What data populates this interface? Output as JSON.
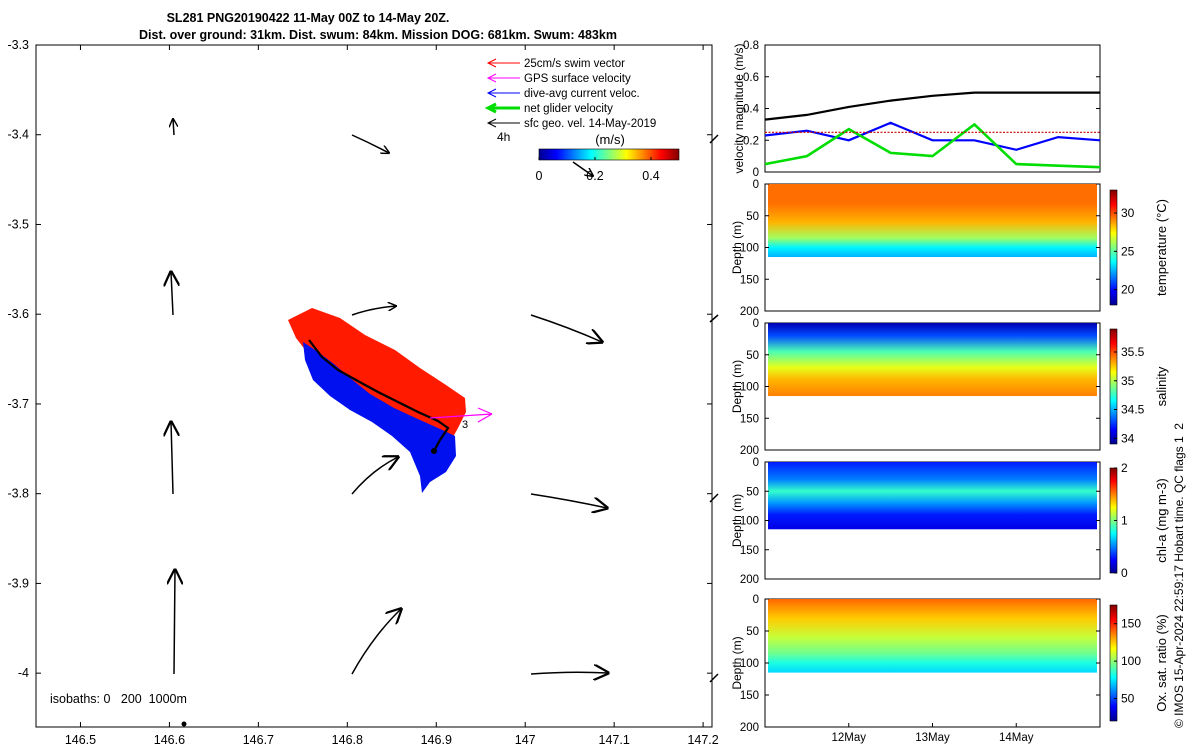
{
  "header": {
    "title_line1": "SL281 PNG20190422 11-May 00Z to 14-May 20Z.",
    "title_line2": "Dist. over ground: 31km. Dist. swum: 84km. Mission DOG: 681km. Swum: 483km"
  },
  "map": {
    "legend": [
      {
        "label": "25cm/s swim vector",
        "color": "#ff0000",
        "width": 1
      },
      {
        "label": "GPS surface velocity",
        "color": "#ff00ff",
        "width": 1
      },
      {
        "label": "dive-avg current veloc.",
        "color": "#0000ff",
        "width": 1
      },
      {
        "label": "net glider velocity",
        "color": "#00dd00",
        "width": 3
      },
      {
        "label": "sfc geo. vel. 14-May-2019",
        "color": "#000000",
        "width": 1
      }
    ],
    "colorbar_tag": "4h",
    "colorbar_unit": "(m/s)",
    "colorbar_ticks": [
      "0",
      "0.2",
      "0.4"
    ],
    "colorbar_range": [
      0,
      0.5
    ],
    "isobaths_label": "isobaths: 0   200  1000m",
    "track_label": "3",
    "x_ticks": [
      "146.5",
      "146.6",
      "146.7",
      "146.8",
      "146.9",
      "147",
      "147.1",
      "147.2"
    ],
    "y_ticks": [
      "-3.3",
      "-3.4",
      "-3.5",
      "-3.6",
      "-3.7",
      "-3.8",
      "-3.9",
      "-4"
    ],
    "xlim": [
      146.45,
      147.21
    ],
    "ylim": [
      -4.06,
      -3.3
    ]
  },
  "chart_data": [
    {
      "type": "line",
      "ylabel": "velocity magnitude (m/s)",
      "ylim": [
        0,
        0.8
      ],
      "yticks": [
        "0",
        "0.2",
        "0.4",
        "0.6",
        "0.8"
      ],
      "x": [
        "11-May 00Z",
        "11-May 12Z",
        "12-May 00Z",
        "12-May 12Z",
        "13-May 00Z",
        "13-May 12Z",
        "14-May 00Z",
        "14-May 12Z",
        "14-May 20Z"
      ],
      "series": [
        {
          "color": "#000000",
          "values": [
            0.33,
            0.36,
            0.41,
            0.45,
            0.48,
            0.5,
            0.5,
            0.5,
            0.5
          ]
        },
        {
          "color": "#0000ff",
          "values": [
            0.23,
            0.26,
            0.2,
            0.31,
            0.2,
            0.2,
            0.14,
            0.22,
            0.2
          ]
        },
        {
          "color": "#00dd00",
          "values": [
            0.05,
            0.1,
            0.27,
            0.12,
            0.1,
            0.3,
            0.05,
            0.04,
            0.03
          ]
        },
        {
          "color": "#cc0000",
          "values": [
            0.25,
            0.25,
            0.25,
            0.25,
            0.25,
            0.25,
            0.25,
            0.25,
            0.25
          ]
        }
      ]
    },
    {
      "type": "heatmap",
      "ylabel": "Depth (m)",
      "colorbar_label": "temperature (°C)",
      "ylim": [
        200,
        0
      ],
      "yticks": [
        "0",
        "50",
        "100",
        "150",
        "200"
      ],
      "cticks": [
        "20",
        "25",
        "30"
      ],
      "crange": [
        18,
        33
      ],
      "depth_m": [
        0,
        30,
        60,
        85,
        100,
        115
      ],
      "values": [
        29.5,
        29.5,
        28.5,
        26,
        23.5,
        22.5
      ]
    },
    {
      "type": "heatmap",
      "ylabel": "Depth (m)",
      "colorbar_label": "salinity",
      "ylim": [
        200,
        0
      ],
      "yticks": [
        "0",
        "50",
        "100",
        "150",
        "200"
      ],
      "cticks": [
        "34",
        "34.5",
        "35",
        "35.5"
      ],
      "crange": [
        33.9,
        35.9
      ],
      "depth_m": [
        0,
        20,
        45,
        70,
        90,
        115
      ],
      "values": [
        34.0,
        34.3,
        34.8,
        35.1,
        35.3,
        35.4
      ]
    },
    {
      "type": "heatmap",
      "ylabel": "Depth (m)",
      "colorbar_label": "chl-a (mg m-3)",
      "ylim": [
        200,
        0
      ],
      "yticks": [
        "0",
        "50",
        "100",
        "150",
        "200"
      ],
      "cticks": [
        "0",
        "1",
        "2"
      ],
      "crange": [
        0,
        2
      ],
      "depth_m": [
        0,
        30,
        50,
        70,
        90,
        115
      ],
      "values": [
        0.3,
        0.5,
        0.85,
        0.55,
        0.3,
        0.2
      ]
    },
    {
      "type": "heatmap",
      "ylabel": "Depth (m)",
      "colorbar_label": "Ox. sat. ratio (%)",
      "ylim": [
        200,
        0
      ],
      "yticks": [
        "0",
        "50",
        "100",
        "150",
        "200"
      ],
      "cticks": [
        "50",
        "100",
        "150"
      ],
      "crange": [
        20,
        175
      ],
      "depth_m": [
        0,
        30,
        60,
        85,
        100,
        115
      ],
      "values": [
        140,
        125,
        108,
        95,
        82,
        72
      ],
      "xticks": [
        "12May",
        "13May",
        "14May"
      ]
    }
  ],
  "footer": {
    "side_note": "© IMOS 15-Apr-2024 22:59:17 Hobart time. QC flags 1  2"
  }
}
